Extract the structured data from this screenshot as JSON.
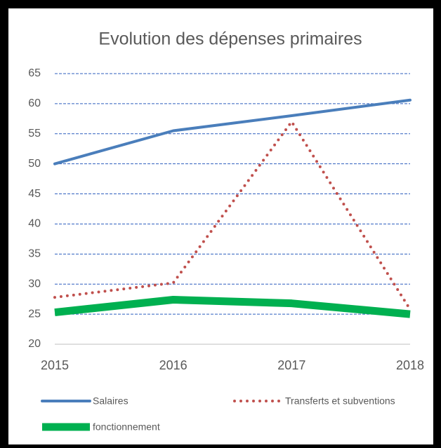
{
  "chart_data": {
    "type": "line",
    "title": "Evolution des dépenses primaires",
    "categories": [
      "2015",
      "2016",
      "2017",
      "2018"
    ],
    "series": [
      {
        "name": "Salaires",
        "color": "#4a7ebb",
        "style": "solid",
        "values": [
          50,
          55.5,
          58,
          60.6
        ]
      },
      {
        "name": "Transferts et subventions",
        "color": "#c0504d",
        "style": "dotted",
        "values": [
          27.8,
          30.2,
          57,
          25.8
        ]
      },
      {
        "name": "fonctionnement",
        "color": "#00b050",
        "style": "thick",
        "values": [
          25.3,
          27.4,
          26.8,
          25
        ]
      }
    ],
    "ylim": [
      20,
      65
    ],
    "yticks": [
      20,
      25,
      30,
      35,
      40,
      45,
      50,
      55,
      60,
      65
    ],
    "grid": true,
    "legend": "bottom"
  }
}
